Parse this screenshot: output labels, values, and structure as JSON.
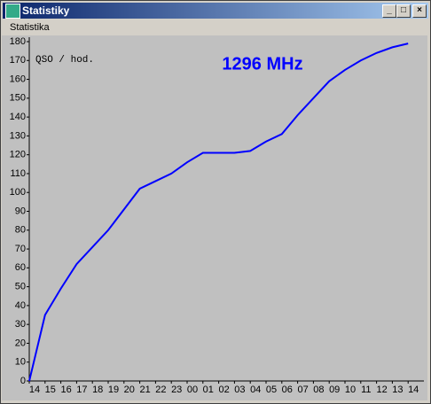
{
  "window_title": "Statistiky",
  "menu": [
    "Statistika"
  ],
  "chart_data": {
    "type": "line",
    "title": "1296 MHz",
    "y_label": "QSO / hod.",
    "categories": [
      "14",
      "15",
      "16",
      "17",
      "18",
      "19",
      "20",
      "21",
      "22",
      "23",
      "00",
      "01",
      "02",
      "03",
      "04",
      "05",
      "06",
      "07",
      "08",
      "09",
      "10",
      "11",
      "12",
      "13",
      "14"
    ],
    "series": [
      {
        "color": "#0000ff",
        "values": [
          0,
          35,
          49,
          62,
          71,
          80,
          91,
          102,
          106,
          110,
          116,
          121,
          121,
          121,
          122,
          127,
          131,
          141,
          150,
          159,
          165,
          170,
          174,
          177,
          179
        ]
      }
    ],
    "ylim": [
      0,
      180
    ],
    "yticks": [
      0,
      10,
      20,
      30,
      40,
      50,
      60,
      70,
      80,
      90,
      100,
      110,
      120,
      130,
      140,
      150,
      160,
      170,
      180
    ]
  }
}
